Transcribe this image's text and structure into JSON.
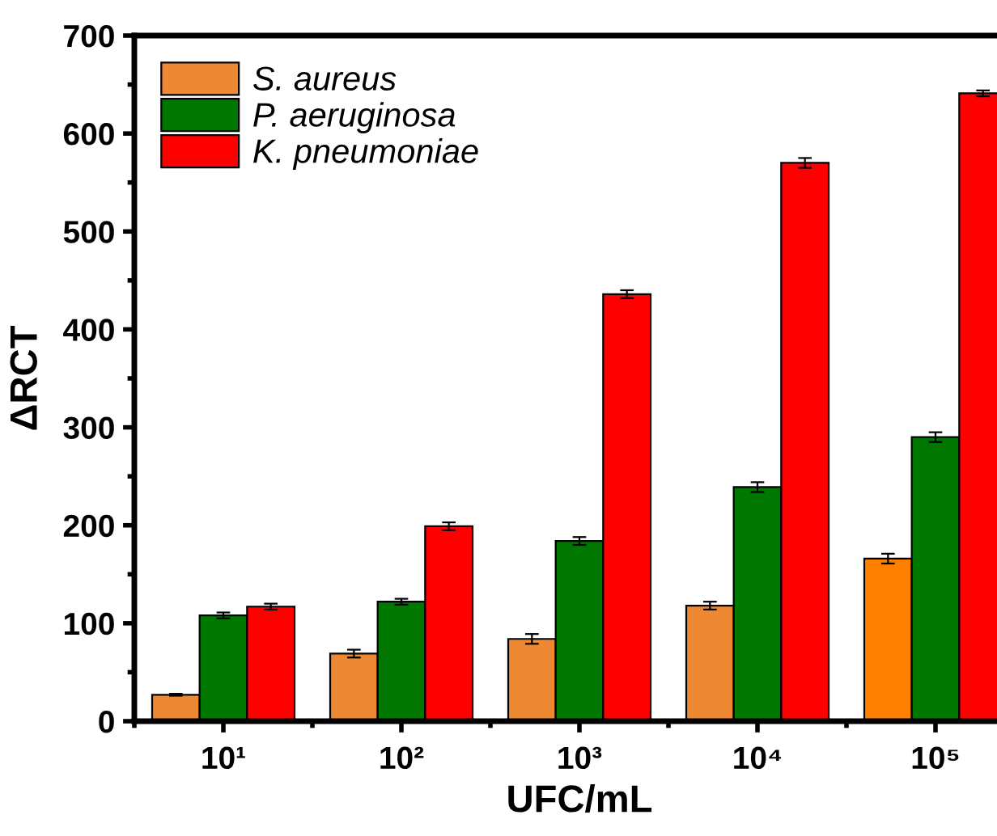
{
  "chart_data": {
    "type": "bar",
    "xlabel": "UFC/mL",
    "ylabel": "ΔRCT",
    "categories": [
      "10¹",
      "10²",
      "10³",
      "10⁴",
      "10⁵"
    ],
    "series": [
      {
        "name": "S. aureus",
        "color": "#ee8833",
        "colors": [
          "#ee8833",
          "#ee8833",
          "#ee8833",
          "#ee8833",
          "#ff8000"
        ],
        "values": [
          27,
          69,
          84,
          118,
          166
        ],
        "errors": [
          1,
          4,
          5,
          4,
          5
        ]
      },
      {
        "name": "P. aeruginosa",
        "color": "#007700",
        "values": [
          108,
          122,
          184,
          239,
          290
        ],
        "errors": [
          3,
          3,
          4,
          5,
          5
        ]
      },
      {
        "name": "K. pneumoniae",
        "color": "#ff0000",
        "values": [
          117,
          199,
          436,
          570,
          641
        ],
        "errors": [
          3,
          4,
          4,
          5,
          3
        ]
      }
    ],
    "ylim": [
      0,
      700
    ],
    "yticks": [
      0,
      100,
      200,
      300,
      400,
      500,
      600,
      700
    ],
    "grid": false,
    "legend": "top left"
  }
}
